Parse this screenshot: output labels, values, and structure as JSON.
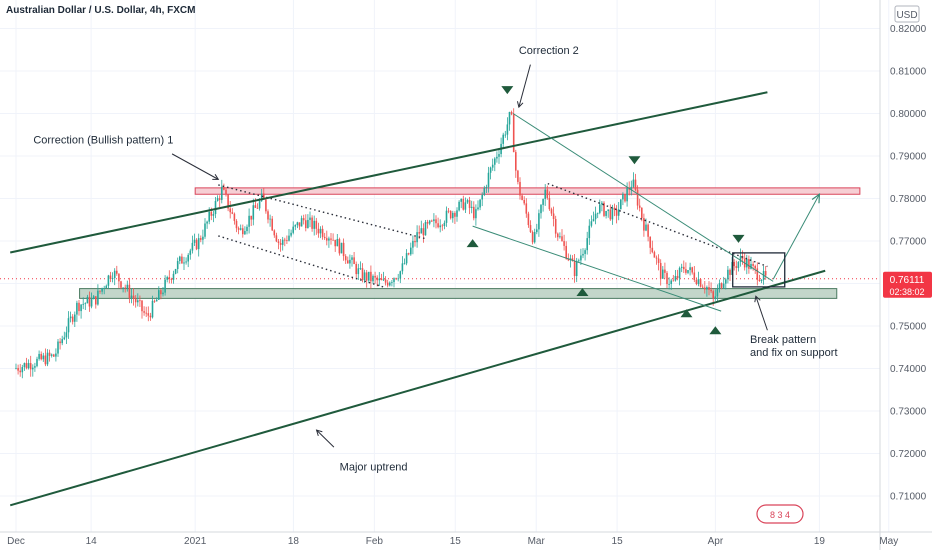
{
  "header": {
    "title": "Australian Dollar / U.S. Dollar, 4h, FXCM",
    "currency": "USD"
  },
  "price_tag": {
    "price": "0.76111",
    "countdown": "02:38:02",
    "color": "#f23645"
  },
  "chart_data": {
    "type": "candlestick",
    "title": "Australian Dollar / U.S. Dollar, 4h, FXCM",
    "ylim": [
      0.702,
      0.822
    ],
    "y_ticks": [
      "0.82000",
      "0.81000",
      "0.80000",
      "0.79000",
      "0.78000",
      "0.77000",
      "0.76000",
      "0.75000",
      "0.74000",
      "0.73000",
      "0.72000",
      "0.71000"
    ],
    "x_ticks": [
      "Dec",
      "14",
      "2021",
      "18",
      "Feb",
      "15",
      "Mar",
      "15",
      "Apr",
      "19",
      "May"
    ],
    "current_price": 0.76111,
    "price_path": [
      {
        "date": "Dec 1",
        "price": 0.74
      },
      {
        "date": "Dec 8",
        "price": 0.743
      },
      {
        "date": "Dec 12",
        "price": 0.755
      },
      {
        "date": "Dec 15",
        "price": 0.756
      },
      {
        "date": "Dec 18",
        "price": 0.763
      },
      {
        "date": "Dec 22",
        "price": 0.756
      },
      {
        "date": "Dec 24",
        "price": 0.752
      },
      {
        "date": "Dec 29",
        "price": 0.764
      },
      {
        "date": "Jan 2",
        "price": 0.77
      },
      {
        "date": "Jan 6",
        "price": 0.782
      },
      {
        "date": "Jan 9",
        "price": 0.772
      },
      {
        "date": "Jan 13",
        "price": 0.78
      },
      {
        "date": "Jan 16",
        "price": 0.769
      },
      {
        "date": "Jan 20",
        "price": 0.775
      },
      {
        "date": "Jan 25",
        "price": 0.771
      },
      {
        "date": "Jan 30",
        "price": 0.762
      },
      {
        "date": "Feb 3",
        "price": 0.76
      },
      {
        "date": "Feb 6",
        "price": 0.763
      },
      {
        "date": "Feb 9",
        "price": 0.772
      },
      {
        "date": "Feb 13",
        "price": 0.775
      },
      {
        "date": "Feb 17",
        "price": 0.779
      },
      {
        "date": "Feb 19",
        "price": 0.776
      },
      {
        "date": "Feb 21",
        "price": 0.785
      },
      {
        "date": "Feb 23",
        "price": 0.792
      },
      {
        "date": "Feb 25",
        "price": 0.8
      },
      {
        "date": "Feb 26",
        "price": 0.784
      },
      {
        "date": "Mar 1",
        "price": 0.77
      },
      {
        "date": "Mar 3",
        "price": 0.782
      },
      {
        "date": "Mar 5",
        "price": 0.772
      },
      {
        "date": "Mar 8",
        "price": 0.763
      },
      {
        "date": "Mar 10",
        "price": 0.77
      },
      {
        "date": "Mar 12",
        "price": 0.778
      },
      {
        "date": "Mar 15",
        "price": 0.776
      },
      {
        "date": "Mar 18",
        "price": 0.784
      },
      {
        "date": "Mar 20",
        "price": 0.774
      },
      {
        "date": "Mar 23",
        "price": 0.762
      },
      {
        "date": "Mar 25",
        "price": 0.76
      },
      {
        "date": "Mar 27",
        "price": 0.764
      },
      {
        "date": "Mar 31",
        "price": 0.759
      },
      {
        "date": "Apr 1",
        "price": 0.756
      },
      {
        "date": "Apr 3",
        "price": 0.762
      },
      {
        "date": "Apr 6",
        "price": 0.766
      },
      {
        "date": "Apr 8",
        "price": 0.763
      },
      {
        "date": "Apr 10",
        "price": 0.7611
      }
    ],
    "zones": [
      {
        "kind": "resistance",
        "from": "Jan 1",
        "to": "Apr 26",
        "y0": 0.781,
        "y1": 0.7825,
        "fill": "#f5c6cc",
        "stroke": "#d9455a"
      },
      {
        "kind": "support",
        "from": "Dec 12",
        "to": "Apr 22",
        "y0": 0.7565,
        "y1": 0.7588,
        "fill": "#b8cfc1",
        "stroke": "#4b7a60"
      }
    ],
    "trendlines": [
      {
        "kind": "channel-top",
        "x1": "Nov 30",
        "y1": 0.7673,
        "x2": "Apr 10",
        "y2": 0.805,
        "color": "#1f5a3c",
        "width": 2
      },
      {
        "kind": "channel-bottom",
        "x1": "Nov 30",
        "y1": 0.7078,
        "x2": "Apr 20",
        "y2": 0.763,
        "color": "#1f5a3c",
        "width": 2
      },
      {
        "kind": "wedge-top",
        "x1": "Feb 25",
        "y1": 0.8,
        "x2": "Apr 11",
        "y2": 0.7605,
        "color": "#3a8c77",
        "width": 1
      },
      {
        "kind": "wedge-bottom",
        "x1": "Feb 18",
        "y1": 0.7735,
        "x2": "Apr 2",
        "y2": 0.7535,
        "color": "#3a8c77",
        "width": 1
      },
      {
        "kind": "arrow",
        "x1": "Apr 11",
        "y1": 0.761,
        "x2": "Apr 19",
        "y2": 0.781,
        "color": "#3a8c77",
        "width": 1
      }
    ],
    "dotted_channels": [
      {
        "x1": "Jan 5",
        "y1": 0.7832,
        "x2": "Feb 10",
        "y2": 0.7705
      },
      {
        "x1": "Jan 5",
        "y1": 0.7712,
        "x2": "Feb 3",
        "y2": 0.759
      },
      {
        "x1": "Mar 3",
        "y1": 0.7835,
        "x2": "Apr 10",
        "y2": 0.764
      }
    ],
    "markers": [
      {
        "type": "down",
        "date": "Feb 24",
        "price": 0.8055
      },
      {
        "type": "down",
        "date": "Mar 18",
        "price": 0.789
      },
      {
        "type": "down",
        "date": "Apr 5",
        "price": 0.7705
      },
      {
        "type": "up",
        "date": "Feb 18",
        "price": 0.7695
      },
      {
        "type": "up",
        "date": "Mar 9",
        "price": 0.758
      },
      {
        "type": "up",
        "date": "Mar 27",
        "price": 0.753
      },
      {
        "type": "up",
        "date": "Apr 1",
        "price": 0.749
      }
    ],
    "box": {
      "from": "Apr 4",
      "to": "Apr 13",
      "y0": 0.7592,
      "y1": 0.7672
    },
    "annotations": [
      {
        "id": "correction1",
        "text": "Correction (Bullish pattern) 1",
        "date": "Dec 4",
        "price": 0.793
      },
      {
        "id": "correction2",
        "text": "Correction 2",
        "date": "Feb 26",
        "price": 0.814
      },
      {
        "id": "break",
        "text": "Break pattern",
        "date": "Apr 7",
        "price": 0.746
      },
      {
        "id": "fix",
        "text": "and fix on support",
        "date": "Apr 7",
        "price": 0.743
      },
      {
        "id": "uptrend",
        "text": "Major uptrend",
        "date": "Jan 26",
        "price": 0.716
      }
    ],
    "pointer_arrows": [
      {
        "from_date": "Dec 28",
        "from_price": 0.7905,
        "to_date": "Jan 5",
        "to_price": 0.7845
      },
      {
        "from_date": "Feb 28",
        "from_price": 0.8115,
        "to_date": "Feb 26",
        "to_price": 0.8015
      },
      {
        "from_date": "Apr 10",
        "from_price": 0.749,
        "to_date": "Apr 8",
        "to_price": 0.757
      },
      {
        "from_date": "Jan 25",
        "from_price": 0.7215,
        "to_date": "Jan 22",
        "to_price": 0.7255
      }
    ]
  },
  "watermark": {
    "label": "8 3 4",
    "color": "#d9455a"
  }
}
